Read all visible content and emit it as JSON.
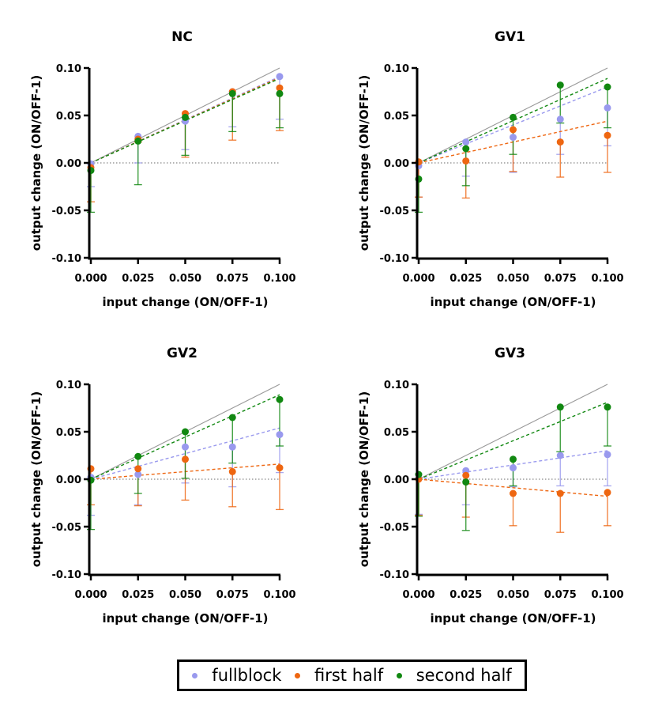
{
  "colors": {
    "fullblock": "#9999ee",
    "first_half": "#ee6611",
    "second_half": "#118811",
    "identity_line": "#999999",
    "zero_line": "#888888",
    "axis": "#000000"
  },
  "legend": {
    "items": [
      {
        "key": "fullblock",
        "label": "fullblock"
      },
      {
        "key": "first_half",
        "label": "first half"
      },
      {
        "key": "second_half",
        "label": "second half"
      }
    ],
    "placement": "bottom-center"
  },
  "chart_data": [
    {
      "type": "scatter",
      "title": "NC",
      "xlabel": "input change (ON/OFF-1)",
      "ylabel": "output change (ON/OFF-1)",
      "x": [
        0.0,
        0.025,
        0.05,
        0.075,
        0.1
      ],
      "xticks": [
        "0.000",
        "0.025",
        "0.050",
        "0.075",
        "0.100"
      ],
      "yticks": [
        "-0.10",
        "-0.05",
        "0.00",
        "0.05",
        "0.10"
      ],
      "xlim": [
        0,
        0.1
      ],
      "ylim": [
        -0.1,
        0.1
      ],
      "reference_lines": {
        "identity": true,
        "zero": true
      },
      "series": [
        {
          "key": "fullblock",
          "name": "fullblock",
          "values": [
            -0.001,
            0.028,
            0.044,
            0.075,
            0.091
          ],
          "err_lower": [
            -0.025,
            0.0,
            0.014,
            0.038,
            0.046
          ],
          "fit_slope": 0.91
        },
        {
          "key": "first_half",
          "name": "first half",
          "values": [
            -0.005,
            0.025,
            0.052,
            0.075,
            0.079
          ],
          "err_lower": [
            -0.041,
            0.022,
            0.006,
            0.024,
            0.034
          ],
          "fit_slope": 0.9
        },
        {
          "key": "second_half",
          "name": "second half",
          "values": [
            -0.008,
            0.023,
            0.048,
            0.073,
            0.073
          ],
          "err_lower": [
            -0.052,
            -0.023,
            0.008,
            0.033,
            0.037
          ],
          "fit_slope": 0.89
        }
      ]
    },
    {
      "type": "scatter",
      "title": "GV1",
      "xlabel": "input change (ON/OFF-1)",
      "ylabel": "output change (ON/OFF-1)",
      "x": [
        0.0,
        0.025,
        0.05,
        0.075,
        0.1
      ],
      "xticks": [
        "0.000",
        "0.025",
        "0.050",
        "0.075",
        "0.100"
      ],
      "yticks": [
        "-0.10",
        "-0.05",
        "0.00",
        "0.05",
        "0.10"
      ],
      "xlim": [
        0,
        0.1
      ],
      "ylim": [
        -0.1,
        0.1
      ],
      "reference_lines": {
        "identity": true,
        "zero": true
      },
      "series": [
        {
          "key": "fullblock",
          "name": "fullblock",
          "values": [
            -0.003,
            0.022,
            0.027,
            0.046,
            0.058
          ],
          "err_lower": [
            -0.036,
            -0.014,
            -0.01,
            0.009,
            0.018
          ],
          "fit_slope": 0.8
        },
        {
          "key": "first_half",
          "name": "first half",
          "values": [
            0.001,
            0.002,
            0.035,
            0.022,
            0.029
          ],
          "err_lower": [
            -0.036,
            -0.037,
            -0.009,
            -0.015,
            -0.01
          ],
          "fit_slope": 0.44
        },
        {
          "key": "second_half",
          "name": "second half",
          "values": [
            -0.017,
            0.015,
            0.048,
            0.082,
            0.08
          ],
          "err_lower": [
            -0.052,
            -0.024,
            0.009,
            0.042,
            0.037
          ],
          "fit_slope": 0.89
        }
      ]
    },
    {
      "type": "scatter",
      "title": "GV2",
      "xlabel": "input change (ON/OFF-1)",
      "ylabel": "output change (ON/OFF-1)",
      "x": [
        0.0,
        0.025,
        0.05,
        0.075,
        0.1
      ],
      "xticks": [
        "0.000",
        "0.025",
        "0.050",
        "0.075",
        "0.100"
      ],
      "yticks": [
        "-0.10",
        "-0.05",
        "0.00",
        "0.05",
        "0.10"
      ],
      "xlim": [
        0,
        0.1
      ],
      "ylim": [
        -0.1,
        0.1
      ],
      "reference_lines": {
        "identity": true,
        "zero": true
      },
      "series": [
        {
          "key": "fullblock",
          "name": "fullblock",
          "values": [
            0.002,
            0.005,
            0.034,
            0.034,
            0.047
          ],
          "err_lower": [
            -0.038,
            -0.027,
            -0.004,
            -0.008,
            0.007
          ],
          "fit_slope": 0.54
        },
        {
          "key": "first_half",
          "name": "first half",
          "values": [
            0.011,
            0.011,
            0.021,
            0.008,
            0.012
          ],
          "err_lower": [
            -0.027,
            -0.028,
            -0.022,
            -0.029,
            -0.032
          ],
          "fit_slope": 0.16
        },
        {
          "key": "second_half",
          "name": "second half",
          "values": [
            -0.001,
            0.024,
            0.05,
            0.065,
            0.084
          ],
          "err_lower": [
            -0.053,
            -0.015,
            0.001,
            0.017,
            0.035
          ],
          "fit_slope": 0.89
        }
      ]
    },
    {
      "type": "scatter",
      "title": "GV3",
      "xlabel": "input change (ON/OFF-1)",
      "ylabel": "output change (ON/OFF-1)",
      "x": [
        0.0,
        0.025,
        0.05,
        0.075,
        0.1
      ],
      "xticks": [
        "0.000",
        "0.025",
        "0.050",
        "0.075",
        "0.100"
      ],
      "yticks": [
        "-0.10",
        "-0.05",
        "0.00",
        "0.05",
        "0.10"
      ],
      "xlim": [
        0,
        0.1
      ],
      "ylim": [
        -0.1,
        0.1
      ],
      "reference_lines": {
        "identity": true,
        "zero": true
      },
      "series": [
        {
          "key": "fullblock",
          "name": "fullblock",
          "values": [
            0.001,
            0.009,
            0.012,
            0.025,
            0.026
          ],
          "err_lower": [
            -0.037,
            -0.027,
            -0.008,
            -0.007,
            -0.007
          ],
          "fit_slope": 0.3
        },
        {
          "key": "first_half",
          "name": "first half",
          "values": [
            0.0,
            0.004,
            -0.015,
            -0.015,
            -0.014
          ],
          "err_lower": [
            -0.038,
            -0.04,
            -0.049,
            -0.056,
            -0.049
          ],
          "fit_slope": -0.18
        },
        {
          "key": "second_half",
          "name": "second half",
          "values": [
            0.005,
            -0.003,
            0.021,
            0.076,
            0.076
          ],
          "err_lower": [
            -0.039,
            -0.054,
            -0.007,
            0.029,
            0.035
          ],
          "fit_slope": 0.81
        }
      ]
    }
  ]
}
